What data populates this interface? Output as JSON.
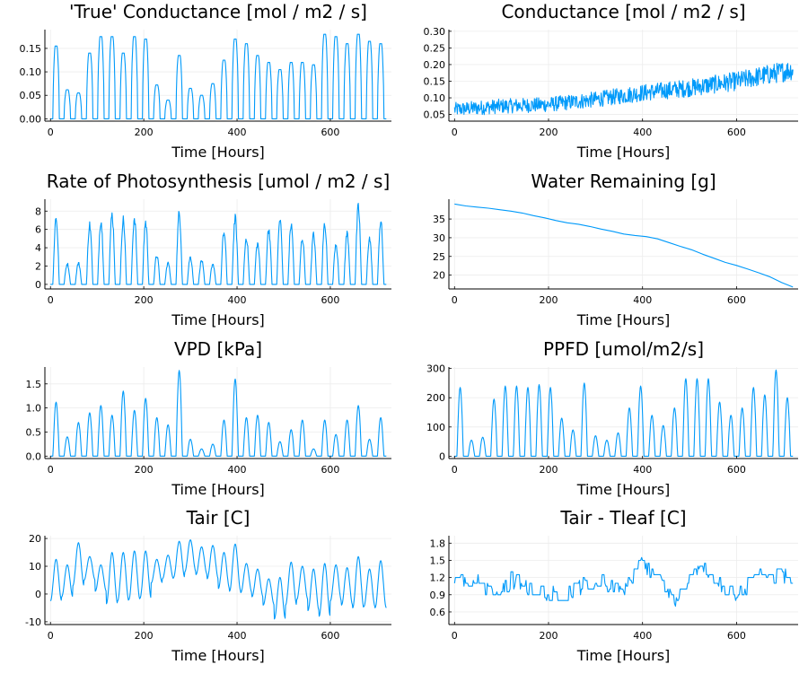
{
  "chart_data": [
    {
      "type": "line",
      "title": "'True' Conductance [mol / m2 / s]",
      "xlabel": "Time [Hours]",
      "ylabel": "",
      "xlim": [
        0,
        720
      ],
      "ylim": [
        -0.005,
        0.19
      ],
      "xticks": [
        0,
        200,
        400,
        600
      ],
      "yticks": [
        0.0,
        0.05,
        0.1,
        0.15
      ],
      "ytick_labels": [
        "0.00",
        "0.05",
        "0.10",
        "0.15"
      ],
      "grid": true,
      "legend": "none",
      "color": "#009AFA",
      "series": [
        {
          "kind": "daily",
          "x_start": 0,
          "x_end": 720,
          "period": 24,
          "peak_shape": "flat-top",
          "baseline": 0.0,
          "daily_peaks": [
            0.155,
            0.062,
            0.055,
            0.14,
            0.175,
            0.175,
            0.14,
            0.175,
            0.17,
            0.072,
            0.04,
            0.135,
            0.065,
            0.05,
            0.075,
            0.125,
            0.17,
            0.16,
            0.135,
            0.12,
            0.105,
            0.12,
            0.12,
            0.115,
            0.18,
            0.175,
            0.16,
            0.18,
            0.165,
            0.16
          ]
        }
      ]
    },
    {
      "type": "line",
      "title": "Conductance [mol / m2 / s]",
      "xlabel": "Time [Hours]",
      "ylabel": "",
      "xlim": [
        0,
        720
      ],
      "ylim": [
        0.03,
        0.305
      ],
      "xticks": [
        0,
        200,
        400,
        600
      ],
      "yticks": [
        0.05,
        0.1,
        0.15,
        0.2,
        0.25,
        0.3
      ],
      "ytick_labels": [
        "0.05",
        "0.10",
        "0.15",
        "0.20",
        "0.25",
        "0.30"
      ],
      "grid": true,
      "legend": "none",
      "color": "#009AFA",
      "series": [
        {
          "kind": "noisy",
          "x_start": 0,
          "x_end": 720,
          "step": 1,
          "trend_x": [
            0,
            100,
            200,
            300,
            400,
            500,
            600,
            720
          ],
          "trend_y": [
            0.065,
            0.075,
            0.08,
            0.095,
            0.115,
            0.13,
            0.15,
            0.185
          ],
          "noise": 0.026,
          "clip": [
            0.04,
            0.3
          ]
        }
      ]
    },
    {
      "type": "line",
      "title": "Rate of Photosynthesis [umol / m2 / s]",
      "xlabel": "Time [Hours]",
      "ylabel": "",
      "xlim": [
        0,
        720
      ],
      "ylim": [
        -0.5,
        9.3
      ],
      "xticks": [
        0,
        200,
        400,
        600
      ],
      "yticks": [
        0,
        2,
        4,
        6,
        8
      ],
      "ytick_labels": [
        "0",
        "2",
        "4",
        "6",
        "8"
      ],
      "grid": true,
      "legend": "none",
      "color": "#009AFA",
      "series": [
        {
          "kind": "daily",
          "x_start": 0,
          "x_end": 720,
          "period": 24,
          "peak_shape": "jagged",
          "baseline": 0.0,
          "daily_peaks": [
            7.8,
            2.4,
            2.5,
            7.0,
            7.5,
            8.2,
            7.6,
            7.8,
            7.3,
            3.4,
            2.5,
            8.3,
            3.2,
            2.8,
            2.4,
            6.1,
            7.7,
            5.5,
            4.8,
            6.5,
            7.6,
            7.0,
            5.4,
            5.8,
            7.2,
            4.8,
            6.0,
            9.0,
            5.4,
            7.4
          ]
        }
      ]
    },
    {
      "type": "line",
      "title": "Water Remaining [g]",
      "xlabel": "Time [Hours]",
      "ylabel": "",
      "xlim": [
        0,
        720
      ],
      "ylim": [
        16.3,
        40.3
      ],
      "xticks": [
        0,
        200,
        400,
        600
      ],
      "yticks": [
        20,
        25,
        30,
        35
      ],
      "ytick_labels": [
        "20",
        "25",
        "30",
        "35"
      ],
      "grid": true,
      "legend": "none",
      "color": "#009AFA",
      "series": [
        {
          "kind": "points",
          "x": [
            0,
            24,
            48,
            72,
            96,
            120,
            144,
            168,
            192,
            216,
            240,
            264,
            288,
            312,
            336,
            360,
            384,
            408,
            432,
            456,
            480,
            504,
            528,
            552,
            576,
            600,
            624,
            648,
            672,
            696,
            720
          ],
          "y": [
            39.0,
            38.5,
            38.2,
            37.9,
            37.5,
            37.1,
            36.6,
            35.9,
            35.3,
            34.6,
            34.0,
            33.6,
            33.0,
            32.3,
            31.7,
            31.0,
            30.6,
            30.3,
            29.7,
            28.7,
            27.7,
            26.8,
            25.6,
            24.5,
            23.4,
            22.6,
            21.6,
            20.6,
            19.5,
            18.0,
            16.8
          ]
        }
      ]
    },
    {
      "type": "line",
      "title": "VPD [kPa]",
      "xlabel": "Time [Hours]",
      "ylabel": "",
      "xlim": [
        0,
        720
      ],
      "ylim": [
        -0.05,
        1.85
      ],
      "xticks": [
        0,
        200,
        400,
        600
      ],
      "yticks": [
        0.0,
        0.5,
        1.0,
        1.5
      ],
      "ytick_labels": [
        "0.0",
        "0.5",
        "1.0",
        "1.5"
      ],
      "grid": true,
      "legend": "none",
      "color": "#009AFA",
      "series": [
        {
          "kind": "daily",
          "x_start": 0,
          "x_end": 720,
          "period": 24,
          "peak_shape": "smooth",
          "baseline": 0.0,
          "daily_peaks": [
            1.12,
            0.4,
            0.7,
            0.9,
            1.05,
            0.85,
            1.35,
            0.95,
            1.2,
            0.8,
            0.65,
            1.78,
            0.35,
            0.15,
            0.25,
            0.75,
            1.6,
            0.8,
            0.85,
            0.7,
            0.3,
            0.55,
            0.75,
            0.15,
            0.75,
            0.45,
            0.75,
            1.05,
            0.35,
            0.8
          ]
        }
      ]
    },
    {
      "type": "line",
      "title": "PPFD [umol/m2/s]",
      "xlabel": "Time [Hours]",
      "ylabel": "",
      "xlim": [
        0,
        720
      ],
      "ylim": [
        -8,
        305
      ],
      "xticks": [
        0,
        200,
        400,
        600
      ],
      "yticks": [
        0,
        100,
        200,
        300
      ],
      "ytick_labels": [
        "0",
        "100",
        "200",
        "300"
      ],
      "grid": true,
      "legend": "none",
      "color": "#009AFA",
      "series": [
        {
          "kind": "daily",
          "x_start": 0,
          "x_end": 720,
          "period": 24,
          "peak_shape": "smooth",
          "baseline": 0.0,
          "daily_peaks": [
            235,
            55,
            65,
            195,
            240,
            240,
            235,
            245,
            235,
            130,
            90,
            250,
            70,
            55,
            80,
            165,
            240,
            140,
            105,
            165,
            265,
            265,
            265,
            185,
            140,
            165,
            235,
            210,
            295,
            200
          ]
        }
      ]
    },
    {
      "type": "line",
      "title": "Tair [C]",
      "xlabel": "Time [Hours]",
      "ylabel": "",
      "xlim": [
        0,
        720
      ],
      "ylim": [
        -11,
        21
      ],
      "xticks": [
        0,
        200,
        400,
        600
      ],
      "yticks": [
        -10,
        0,
        10,
        20
      ],
      "ytick_labels": [
        "-10",
        "0",
        "10",
        "20"
      ],
      "grid": true,
      "legend": "none",
      "color": "#009AFA",
      "series": [
        {
          "kind": "daily_minmax",
          "x_start": 0,
          "x_end": 720,
          "period": 24,
          "daily_max": [
            12.5,
            10.5,
            18.5,
            13.5,
            10.5,
            15.0,
            15.0,
            15.5,
            15.5,
            12.5,
            14.0,
            19.0,
            19.5,
            17.0,
            17.5,
            15.0,
            18.0,
            11.0,
            9.0,
            5.5,
            6.0,
            11.5,
            10.0,
            9.0,
            11.0,
            10.5,
            9.5,
            13.5,
            9.0,
            12.0
          ],
          "daily_min": [
            -2.5,
            -1.0,
            3.0,
            5.0,
            1.0,
            -3.5,
            -2.5,
            -2.0,
            -1.5,
            4.0,
            5.5,
            6.0,
            8.0,
            7.0,
            5.5,
            2.0,
            1.0,
            0.5,
            -1.0,
            -4.0,
            -9.0,
            -4.0,
            -2.0,
            -6.0,
            -8.0,
            -2.5,
            -4.0,
            -5.0,
            -4.5,
            -5.0
          ]
        }
      ]
    },
    {
      "type": "line",
      "title": "Tair - Tleaf [C]",
      "xlabel": "Time [Hours]",
      "ylabel": "",
      "xlim": [
        0,
        720
      ],
      "ylim": [
        0.38,
        1.93
      ],
      "xticks": [
        0,
        200,
        400,
        600
      ],
      "yticks": [
        0.6,
        0.9,
        1.2,
        1.5,
        1.8
      ],
      "ytick_labels": [
        "0.6",
        "0.9",
        "1.2",
        "1.5",
        "1.8"
      ],
      "grid": true,
      "legend": "none",
      "color": "#009AFA",
      "series": [
        {
          "kind": "steppy",
          "x_start": 0,
          "x_end": 720,
          "step": 2,
          "quantum": 0.05,
          "trend_x": [
            0,
            40,
            80,
            120,
            160,
            200,
            240,
            280,
            320,
            360,
            380,
            400,
            440,
            470,
            500,
            520,
            560,
            600,
            640,
            680,
            720
          ],
          "trend_y": [
            1.1,
            1.15,
            0.95,
            1.15,
            1.0,
            0.95,
            0.9,
            1.1,
            1.1,
            1.0,
            1.25,
            1.5,
            1.1,
            0.75,
            1.2,
            1.45,
            1.1,
            0.9,
            1.2,
            1.2,
            1.2
          ],
          "noise": 0.14,
          "clip": [
            0.45,
            1.9
          ]
        }
      ]
    }
  ]
}
